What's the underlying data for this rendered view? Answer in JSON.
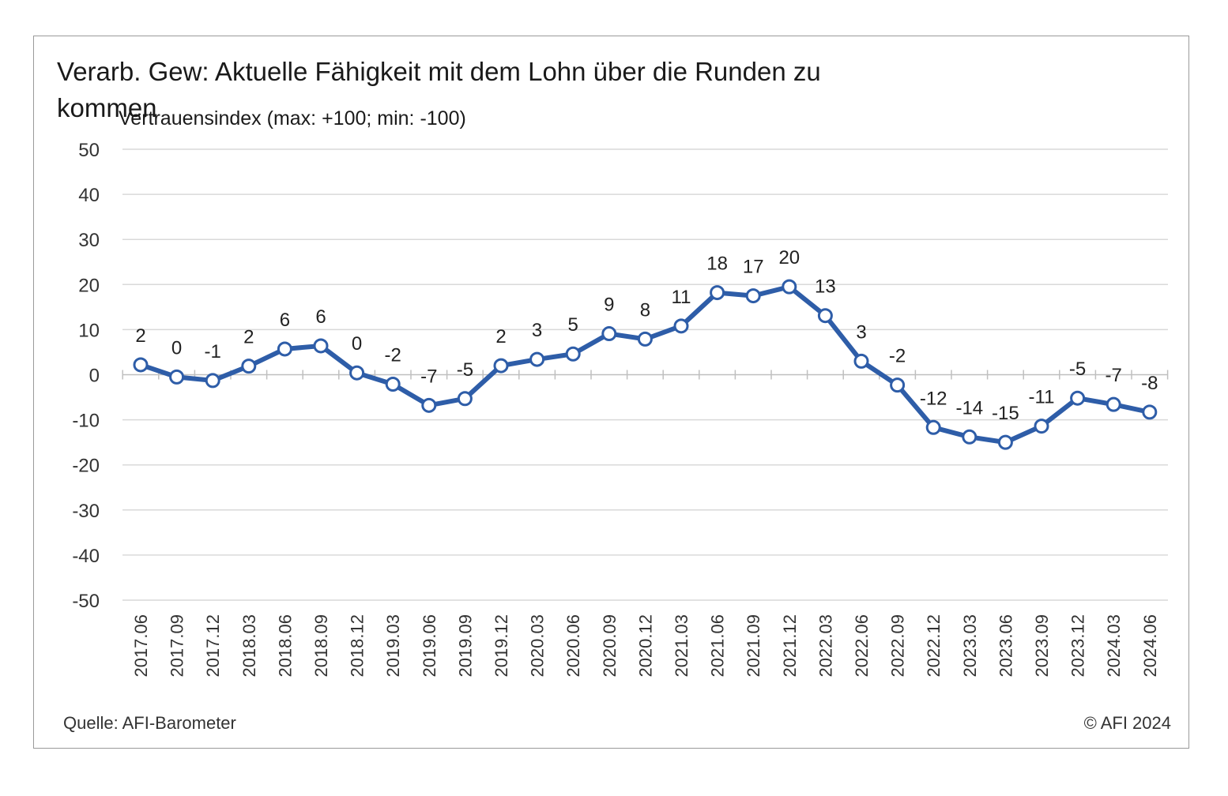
{
  "chart_data": {
    "type": "line",
    "title": "Verarb. Gew: Aktuelle Fähigkeit mit dem Lohn über die Runden zu kommen",
    "ylabel": "Vertrauensindex (max: +100; min: -100)",
    "xlabel": "",
    "ylim": [
      -50,
      50
    ],
    "yticks": [
      50,
      40,
      30,
      20,
      10,
      0,
      -10,
      -20,
      -30,
      -40,
      -50
    ],
    "grid": true,
    "categories": [
      "2017.06",
      "2017.09",
      "2017.12",
      "2018.03",
      "2018.06",
      "2018.09",
      "2018.12",
      "2019.03",
      "2019.06",
      "2019.09",
      "2019.12",
      "2020.03",
      "2020.06",
      "2020.09",
      "2020.12",
      "2021.03",
      "2021.06",
      "2021.09",
      "2021.12",
      "2022.03",
      "2022.06",
      "2022.09",
      "2022.12",
      "2023.03",
      "2023.06",
      "2023.09",
      "2023.12",
      "2024.03",
      "2024.06"
    ],
    "series": [
      {
        "values": [
          2.2,
          -0.5,
          -1.3,
          1.9,
          5.7,
          6.4,
          0.4,
          -2.1,
          -6.8,
          -5.3,
          2.0,
          3.4,
          4.6,
          9.1,
          7.9,
          10.8,
          18.2,
          17.5,
          19.5,
          13.1,
          3.0,
          -2.3,
          -11.7,
          -13.8,
          -15.0,
          -11.4,
          -5.2,
          -6.6,
          -8.3
        ],
        "labels": [
          "2",
          "0",
          "-1",
          "2",
          "6",
          "6",
          "0",
          "-2",
          "-7",
          "-5",
          "2",
          "3",
          "5",
          "9",
          "8",
          "11",
          "18",
          "17",
          "20",
          "13",
          "3",
          "-2",
          "-12",
          "-14",
          "-15",
          "-11",
          "-5",
          "-7",
          "-8"
        ],
        "color": "#2e5da8"
      }
    ]
  },
  "footer": {
    "source": "Quelle: AFI-Barometer",
    "copyright": "© AFI 2024"
  }
}
